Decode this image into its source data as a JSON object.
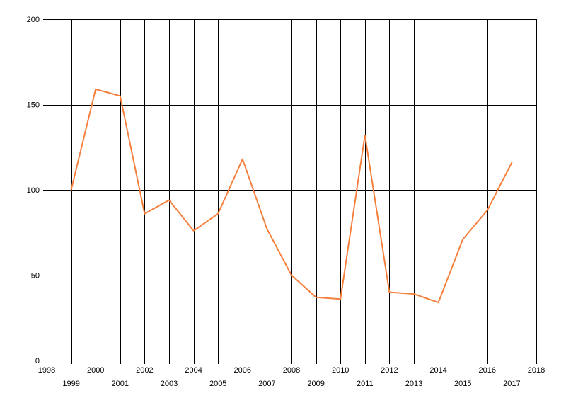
{
  "chart_data": {
    "type": "line",
    "title": "",
    "xlabel": "",
    "ylabel": "",
    "xlim": [
      1998,
      2018
    ],
    "ylim": [
      0,
      200
    ],
    "x_ticks": [
      1998,
      1999,
      2000,
      2001,
      2002,
      2003,
      2004,
      2005,
      2006,
      2007,
      2008,
      2009,
      2010,
      2011,
      2012,
      2013,
      2014,
      2015,
      2016,
      2017,
      2018
    ],
    "y_ticks": [
      0,
      50,
      100,
      150,
      200
    ],
    "grid": true,
    "legend": "none",
    "series": [
      {
        "color": "#f5803e",
        "x": [
          1999,
          2000,
          2001,
          2002,
          2003,
          2004,
          2005,
          2006,
          2007,
          2008,
          2009,
          2010,
          2011,
          2012,
          2013,
          2014,
          2015,
          2016,
          2017
        ],
        "values": [
          100,
          159,
          155,
          86,
          94,
          76,
          86,
          118,
          77,
          50,
          37,
          36,
          132,
          40,
          39,
          34,
          71,
          88,
          116
        ]
      }
    ]
  }
}
